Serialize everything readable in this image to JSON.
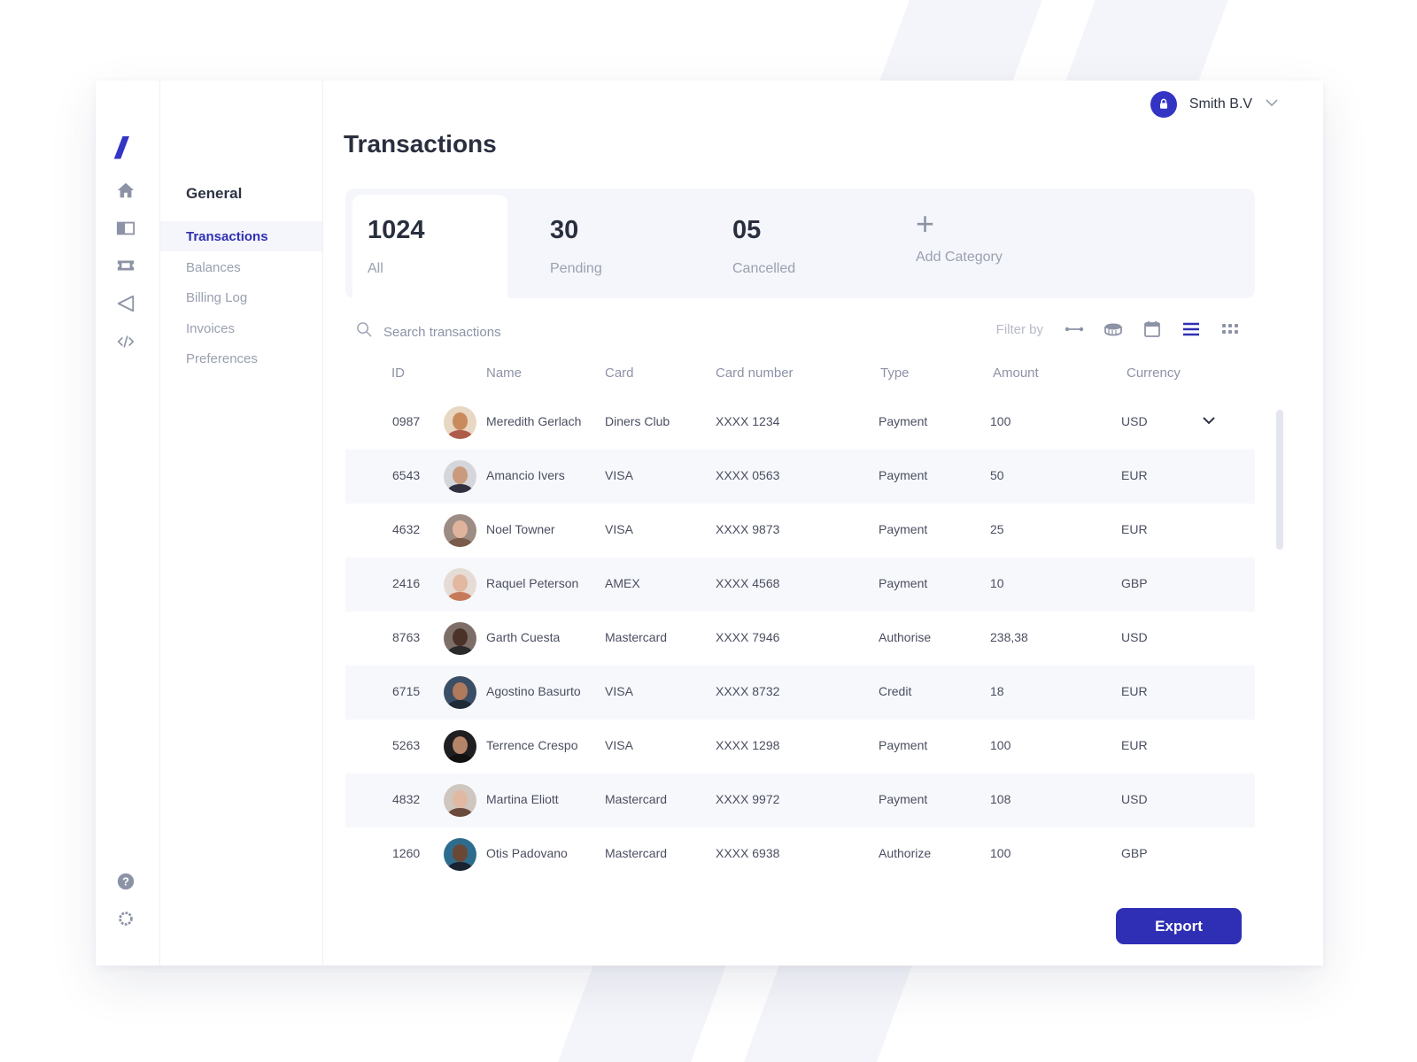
{
  "colors": {
    "accent": "#2f2fb5",
    "icon_gray": "#8d93a6",
    "panel_bg": "#f5f6fb"
  },
  "rail": {
    "logo": "//",
    "icons": [
      "home-icon",
      "panel-icon",
      "ticket-icon",
      "send-icon",
      "code-icon",
      "help-icon",
      "settings-icon"
    ]
  },
  "subnav": {
    "title": "General",
    "items": [
      {
        "label": "Transactions",
        "active": true
      },
      {
        "label": "Balances"
      },
      {
        "label": "Billing Log"
      },
      {
        "label": "Invoices"
      },
      {
        "label": "Preferences"
      }
    ]
  },
  "user": {
    "name": "Smith B.V"
  },
  "page": {
    "title": "Transactions"
  },
  "stats": [
    {
      "value": "1024",
      "label": "All"
    },
    {
      "value": "30",
      "label": "Pending"
    },
    {
      "value": "05",
      "label": "Cancelled"
    },
    {
      "plus": "+",
      "label": "Add Category"
    }
  ],
  "toolbar": {
    "search_placeholder": "Search transactions",
    "filter_label": "Filter by"
  },
  "table": {
    "columns": [
      "ID",
      "Name",
      "Card",
      "Card number",
      "Type",
      "Amount",
      "Currency"
    ],
    "rows": [
      {
        "id": "0987",
        "name": "Meredith Gerlach",
        "card": "Diners Club",
        "number": "XXXX 1234",
        "type": "Payment",
        "amount": "100",
        "currency": "USD"
      },
      {
        "id": "6543",
        "name": "Amancio Ivers",
        "card": "VISA",
        "number": "XXXX 0563",
        "type": "Payment",
        "amount": "50",
        "currency": "EUR"
      },
      {
        "id": "4632",
        "name": "Noel Towner",
        "card": "VISA",
        "number": "XXXX 9873",
        "type": "Payment",
        "amount": "25",
        "currency": "EUR"
      },
      {
        "id": "2416",
        "name": "Raquel Peterson",
        "card": "AMEX",
        "number": "XXXX 4568",
        "type": "Payment",
        "amount": "10",
        "currency": "GBP"
      },
      {
        "id": "8763",
        "name": "Garth Cuesta",
        "card": "Mastercard",
        "number": "XXXX 7946",
        "type": "Authorise",
        "amount": "238,38",
        "currency": "USD"
      },
      {
        "id": "6715",
        "name": "Agostino Basurto",
        "card": "VISA",
        "number": "XXXX 8732",
        "type": "Credit",
        "amount": "18",
        "currency": "EUR"
      },
      {
        "id": "5263",
        "name": "Terrence Crespo",
        "card": "VISA",
        "number": "XXXX 1298",
        "type": "Payment",
        "amount": "100",
        "currency": "EUR"
      },
      {
        "id": "4832",
        "name": "Martina Eliott",
        "card": "Mastercard",
        "number": "XXXX 9972",
        "type": "Payment",
        "amount": "108",
        "currency": "USD"
      },
      {
        "id": "1260",
        "name": "Otis Padovano",
        "card": "Mastercard",
        "number": "XXXX 6938",
        "type": "Authorize",
        "amount": "100",
        "currency": "GBP"
      }
    ]
  },
  "export": {
    "label": "Export"
  }
}
